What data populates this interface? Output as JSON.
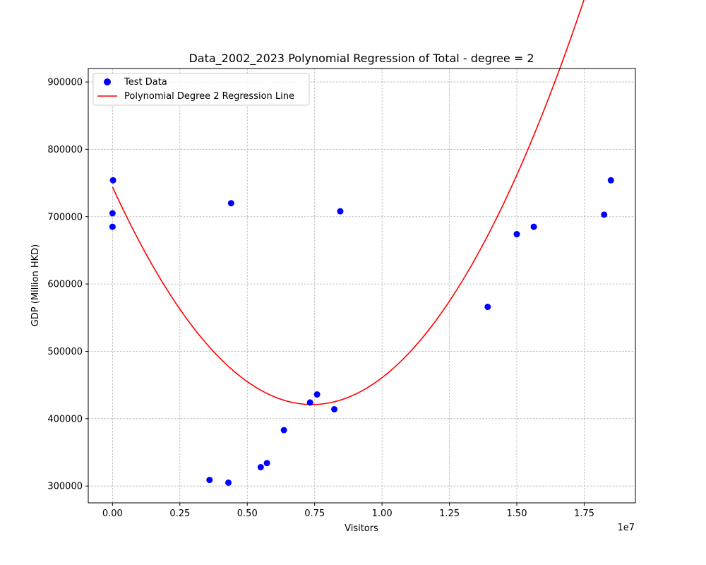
{
  "chart_data": {
    "type": "scatter",
    "title": "Data_2002_2023 Polynomial Regression of Total - degree = 2",
    "xlabel": "Visitors",
    "ylabel": "GDP (Million HKD)",
    "x_multiplier": "1e7",
    "xlim": [
      -0.09,
      1.94
    ],
    "ylim": [
      275000,
      920000
    ],
    "x_ticks": [
      0.0,
      0.25,
      0.5,
      0.75,
      1.0,
      1.25,
      1.5,
      1.75
    ],
    "x_tick_labels": [
      "0.00",
      "0.25",
      "0.50",
      "0.75",
      "1.00",
      "1.25",
      "1.50",
      "1.75"
    ],
    "y_ticks": [
      300000,
      400000,
      500000,
      600000,
      700000,
      800000,
      900000
    ],
    "y_tick_labels": [
      "300000",
      "400000",
      "500000",
      "600000",
      "700000",
      "800000",
      "900000"
    ],
    "grid": true,
    "legend_position": "upper-left",
    "series": [
      {
        "name": "Test Data",
        "kind": "scatter",
        "color": "#0000ff",
        "points": [
          [
            0.002,
            754000
          ],
          [
            0.0,
            705000
          ],
          [
            0.0,
            685000
          ],
          [
            0.44,
            720000
          ],
          [
            0.36,
            309000
          ],
          [
            0.43,
            305000
          ],
          [
            0.55,
            328000
          ],
          [
            0.573,
            334000
          ],
          [
            0.636,
            383000
          ],
          [
            0.733,
            424000
          ],
          [
            0.759,
            436000
          ],
          [
            0.823,
            414000
          ],
          [
            0.845,
            708000
          ],
          [
            1.392,
            566000
          ],
          [
            1.5,
            674000
          ],
          [
            1.563,
            685000
          ],
          [
            1.824,
            703000
          ],
          [
            1.849,
            754000
          ]
        ]
      },
      {
        "name": "Polynomial Degree 2 Regression Line",
        "kind": "line",
        "color": "#ff0000",
        "x_range": [
          0.0,
          1.85
        ],
        "coefficients": {
          "a": 590000,
          "vertex_x": 0.74,
          "vertex_y": 421000
        }
      }
    ]
  }
}
